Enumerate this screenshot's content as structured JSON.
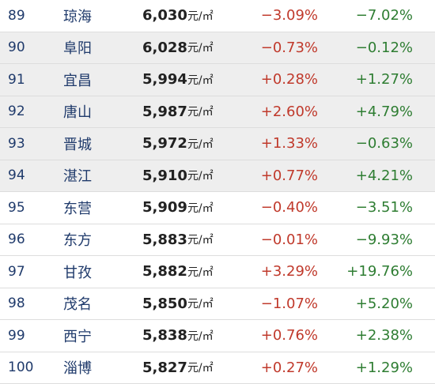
{
  "rows": [
    {
      "rank": "89",
      "city": "琼海",
      "price": "6,030",
      "unit": "元/㎡",
      "mom": "−3.09%",
      "yoy": "−7.02%",
      "shaded": false
    },
    {
      "rank": "90",
      "city": "阜阳",
      "price": "6,028",
      "unit": "元/㎡",
      "mom": "−0.73%",
      "yoy": "−0.12%",
      "shaded": true
    },
    {
      "rank": "91",
      "city": "宜昌",
      "price": "5,994",
      "unit": "元/㎡",
      "mom": "+0.28%",
      "yoy": "+1.27%",
      "shaded": true
    },
    {
      "rank": "92",
      "city": "唐山",
      "price": "5,987",
      "unit": "元/㎡",
      "mom": "+2.60%",
      "yoy": "+4.79%",
      "shaded": true
    },
    {
      "rank": "93",
      "city": "晋城",
      "price": "5,972",
      "unit": "元/㎡",
      "mom": "+1.33%",
      "yoy": "−0.63%",
      "shaded": true
    },
    {
      "rank": "94",
      "city": "湛江",
      "price": "5,910",
      "unit": "元/㎡",
      "mom": "+0.77%",
      "yoy": "+4.21%",
      "shaded": true
    },
    {
      "rank": "95",
      "city": "东营",
      "price": "5,909",
      "unit": "元/㎡",
      "mom": "−0.40%",
      "yoy": "−3.51%",
      "shaded": false
    },
    {
      "rank": "96",
      "city": "东方",
      "price": "5,883",
      "unit": "元/㎡",
      "mom": "−0.01%",
      "yoy": "−9.93%",
      "shaded": false
    },
    {
      "rank": "97",
      "city": "甘孜",
      "price": "5,882",
      "unit": "元/㎡",
      "mom": "+3.29%",
      "yoy": "+19.76%",
      "shaded": false
    },
    {
      "rank": "98",
      "city": "茂名",
      "price": "5,850",
      "unit": "元/㎡",
      "mom": "−1.07%",
      "yoy": "+5.20%",
      "shaded": false
    },
    {
      "rank": "99",
      "city": "西宁",
      "price": "5,838",
      "unit": "元/㎡",
      "mom": "+0.76%",
      "yoy": "+2.38%",
      "shaded": false
    },
    {
      "rank": "100",
      "city": "淄博",
      "price": "5,827",
      "unit": "元/㎡",
      "mom": "+0.27%",
      "yoy": "+1.29%",
      "shaded": false
    }
  ],
  "colors": {
    "shade": "#eeeeee",
    "rank_city": "#1f3a6b",
    "mom": "#c0392b",
    "yoy": "#2e7d32"
  }
}
